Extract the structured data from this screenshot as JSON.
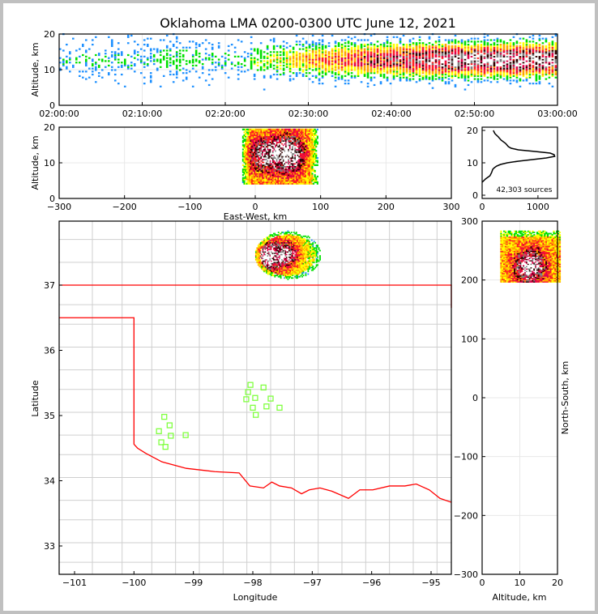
{
  "title": "Oklahoma LMA 0200-0300 UTC June 12, 2021",
  "chart_data": [
    {
      "panel": "time-height",
      "type": "heatmap",
      "xlabel": "",
      "ylabel": "Altitude, km",
      "xlim_minutes": [
        0,
        60
      ],
      "ylim": [
        0,
        20
      ],
      "xticks": [
        "02:00:00",
        "02:10:00",
        "02:20:00",
        "02:30:00",
        "02:40:00",
        "02:50:00",
        "03:00:00"
      ],
      "yticks": [
        "0",
        "10",
        "20"
      ],
      "description_values": {
        "activity_increase_after_minute": 23,
        "peak_altitude_km": 13
      }
    },
    {
      "panel": "east-west-altitude",
      "type": "heatmap",
      "xlabel": "East-West, km",
      "ylabel": "Altitude, km",
      "xlim": [
        -300,
        300
      ],
      "ylim": [
        0,
        20
      ],
      "xticks": [
        "−300",
        "−200",
        "−100",
        "0",
        "100",
        "200",
        "300"
      ],
      "yticks": [
        "0",
        "10",
        "20"
      ],
      "core": {
        "ew_km": [
          -20,
          95
        ],
        "alt_km": [
          4,
          20
        ]
      }
    },
    {
      "panel": "altitude-histogram",
      "type": "line",
      "xlim": [
        0,
        1350
      ],
      "ylim": [
        -1,
        21
      ],
      "xticks": [
        "0",
        "1000"
      ],
      "yticks": [
        "0",
        "10",
        "20"
      ],
      "annotation": "42,303 sources",
      "altitude_km": [
        4,
        5,
        6,
        7,
        8,
        8.5,
        9,
        9.5,
        10,
        10.5,
        11,
        11.5,
        12,
        12.5,
        13,
        13.5,
        14,
        14.5,
        15,
        16,
        17,
        18,
        19,
        20
      ],
      "counts": [
        0,
        60,
        140,
        170,
        190,
        220,
        260,
        330,
        450,
        650,
        900,
        1150,
        1300,
        1290,
        1220,
        950,
        650,
        520,
        470,
        420,
        340,
        290,
        230,
        200
      ]
    },
    {
      "panel": "plan-view-map",
      "type": "scatter",
      "xlabel": "Longitude",
      "ylabel": "Latitude",
      "xlim": [
        -101.26,
        -94.66
      ],
      "ylim": [
        32.57,
        37.98
      ],
      "xticks": [
        "−101",
        "−100",
        "−99",
        "−98",
        "−97",
        "−96",
        "−95"
      ],
      "yticks": [
        "33",
        "34",
        "35",
        "36",
        "37"
      ],
      "stations": [
        [
          -98.04,
          35.47
        ],
        [
          -97.82,
          35.43
        ],
        [
          -98.08,
          35.36
        ],
        [
          -98.11,
          35.25
        ],
        [
          -97.96,
          35.27
        ],
        [
          -97.7,
          35.26
        ],
        [
          -98.0,
          35.12
        ],
        [
          -97.77,
          35.14
        ],
        [
          -97.55,
          35.12
        ],
        [
          -97.95,
          35.01
        ],
        [
          -99.49,
          34.98
        ],
        [
          -99.4,
          34.85
        ],
        [
          -99.58,
          34.76
        ],
        [
          -99.38,
          34.69
        ],
        [
          -99.13,
          34.7
        ],
        [
          -99.54,
          34.59
        ],
        [
          -99.47,
          34.52
        ]
      ],
      "station_color": "#80ff40",
      "border_color": "#ff0000",
      "core": {
        "lon": [
          -97.98,
          -96.85
        ],
        "lat": [
          37.08,
          37.88
        ]
      },
      "red_river": [
        [
          -100.0,
          34.56
        ],
        [
          -99.94,
          34.5
        ],
        [
          -99.8,
          34.42
        ],
        [
          -99.53,
          34.29
        ],
        [
          -99.12,
          34.19
        ],
        [
          -98.64,
          34.14
        ],
        [
          -98.23,
          34.12
        ],
        [
          -98.05,
          33.92
        ],
        [
          -97.82,
          33.89
        ],
        [
          -97.68,
          33.98
        ],
        [
          -97.55,
          33.92
        ],
        [
          -97.35,
          33.89
        ],
        [
          -97.18,
          33.8
        ],
        [
          -97.05,
          33.86
        ],
        [
          -96.87,
          33.89
        ],
        [
          -96.67,
          33.84
        ],
        [
          -96.39,
          33.73
        ],
        [
          -96.2,
          33.86
        ],
        [
          -95.98,
          33.86
        ],
        [
          -95.7,
          33.92
        ],
        [
          -95.44,
          33.92
        ],
        [
          -95.25,
          33.95
        ],
        [
          -95.03,
          33.86
        ],
        [
          -94.85,
          33.73
        ],
        [
          -94.66,
          33.67
        ]
      ]
    },
    {
      "panel": "north-south-altitude",
      "type": "heatmap",
      "xlabel": "Altitude, km",
      "ylabel": "North-South, km",
      "xlim": [
        0,
        20
      ],
      "ylim": [
        -300,
        300
      ],
      "xticks": [
        "0",
        "10",
        "20"
      ],
      "yticks": [
        "−300",
        "−200",
        "−100",
        "0",
        "100",
        "200",
        "300"
      ],
      "core": {
        "alt_km": [
          4,
          20
        ],
        "ns_km": [
          198,
          285
        ]
      }
    }
  ],
  "palette": [
    "#1e90ff",
    "#00e000",
    "#ffff00",
    "#ffa500",
    "#ff2020",
    "#e0004a",
    "#300000",
    "#808080",
    "#ffffff"
  ]
}
